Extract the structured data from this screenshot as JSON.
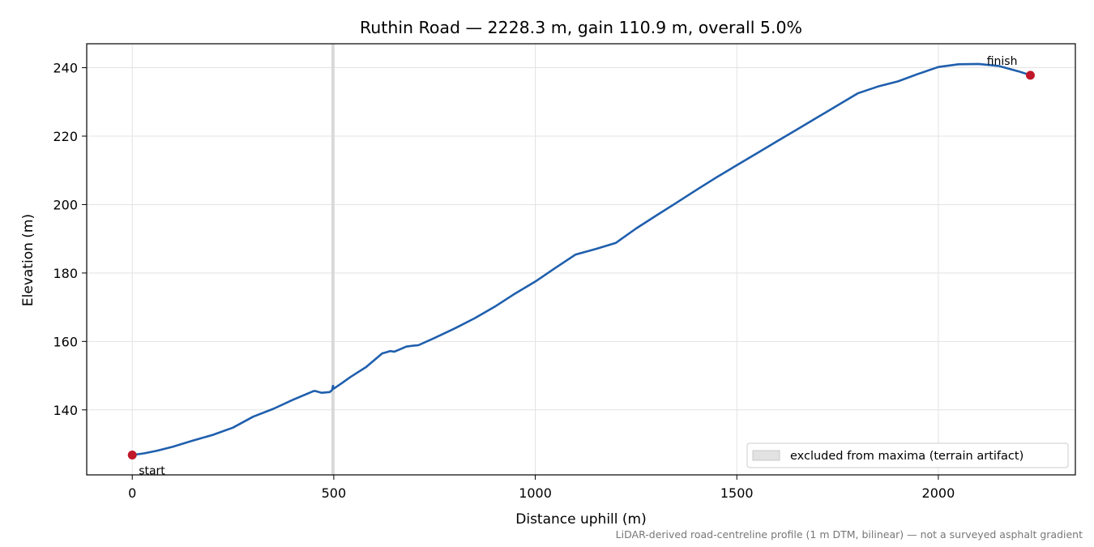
{
  "chart_data": {
    "type": "line",
    "title": "Ruthin Road — 2228.3 m, gain 110.9 m, overall 5.0%",
    "xlabel": "Distance uphill (m)",
    "ylabel": "Elevation (m)",
    "xlim": [
      -113,
      2340
    ],
    "ylim": [
      121,
      247
    ],
    "xticks": [
      0,
      500,
      1000,
      1500,
      2000
    ],
    "yticks": [
      140,
      160,
      180,
      200,
      220,
      240
    ],
    "grid": true,
    "legend_position": "lower-right",
    "legend_entry": "excluded from maxima (terrain artifact)",
    "excluded_band": {
      "x_start": 494,
      "x_end": 502,
      "color": "#d6d6d6"
    },
    "line_color": "#1f5fad",
    "marker_color": "#c0182a",
    "series": [
      {
        "x": [
          0,
          30,
          60,
          100,
          150,
          200,
          250,
          300,
          350,
          400,
          450,
          455,
          470,
          490,
          496,
          498,
          500,
          520,
          540,
          560,
          580,
          600,
          620,
          630,
          640,
          650,
          660,
          680,
          700,
          710,
          750,
          800,
          850,
          900,
          950,
          1000,
          1050,
          1100,
          1150,
          1200,
          1250,
          1300,
          1350,
          1400,
          1450,
          1500,
          1550,
          1600,
          1650,
          1700,
          1750,
          1800,
          1850,
          1900,
          1950,
          2000,
          2050,
          2100,
          2150,
          2200,
          2228.3
        ],
        "y": [
          126.8,
          127.3,
          128.0,
          129.2,
          131.0,
          132.7,
          134.8,
          138.0,
          140.3,
          143.0,
          145.5,
          145.5,
          145.0,
          145.2,
          145.8,
          147.0,
          146.2,
          147.8,
          149.5,
          151.0,
          152.5,
          154.5,
          156.5,
          156.8,
          157.2,
          157.0,
          157.5,
          158.5,
          158.8,
          158.9,
          161.0,
          163.8,
          166.8,
          170.2,
          174.0,
          177.5,
          181.5,
          185.4,
          187.0,
          188.8,
          193.0,
          196.8,
          200.5,
          204.3,
          208.0,
          211.5,
          215.0,
          218.5,
          222.0,
          225.5,
          229.0,
          232.5,
          234.5,
          236.0,
          238.2,
          240.2,
          241.0,
          241.1,
          240.5,
          238.9,
          237.8
        ]
      }
    ],
    "annotations": {
      "start": "start",
      "finish": "finish"
    },
    "start_point": {
      "x": 0,
      "y": 126.8
    },
    "finish_point": {
      "x": 2228.3,
      "y": 237.8
    }
  },
  "footnote": "LiDAR-derived road-centreline profile (1 m DTM, bilinear) — not a surveyed asphalt gradient"
}
